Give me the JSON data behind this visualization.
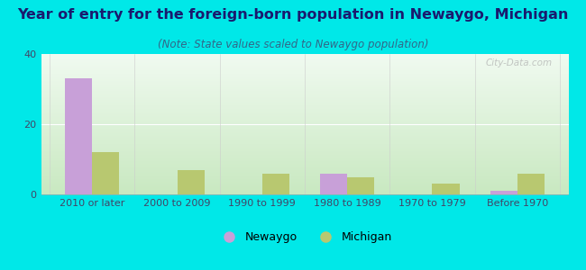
{
  "title": "Year of entry for the foreign-born population in Newaygo, Michigan",
  "subtitle": "(Note: State values scaled to Newaygo population)",
  "categories": [
    "2010 or later",
    "2000 to 2009",
    "1990 to 1999",
    "1980 to 1989",
    "1970 to 1979",
    "Before 1970"
  ],
  "newaygo_values": [
    33,
    0,
    0,
    6,
    0,
    1
  ],
  "michigan_values": [
    12,
    7,
    6,
    5,
    3,
    6
  ],
  "newaygo_color": "#c8a0d8",
  "michigan_color": "#b8c870",
  "background_outer": "#00e8e8",
  "background_inner_top": "#f0faf0",
  "background_inner_bottom": "#c8e8c0",
  "ylim": [
    0,
    40
  ],
  "yticks": [
    0,
    20,
    40
  ],
  "bar_width": 0.32,
  "title_fontsize": 11.5,
  "subtitle_fontsize": 8.5,
  "tick_fontsize": 8,
  "legend_fontsize": 9,
  "watermark_text": "City-Data.com"
}
